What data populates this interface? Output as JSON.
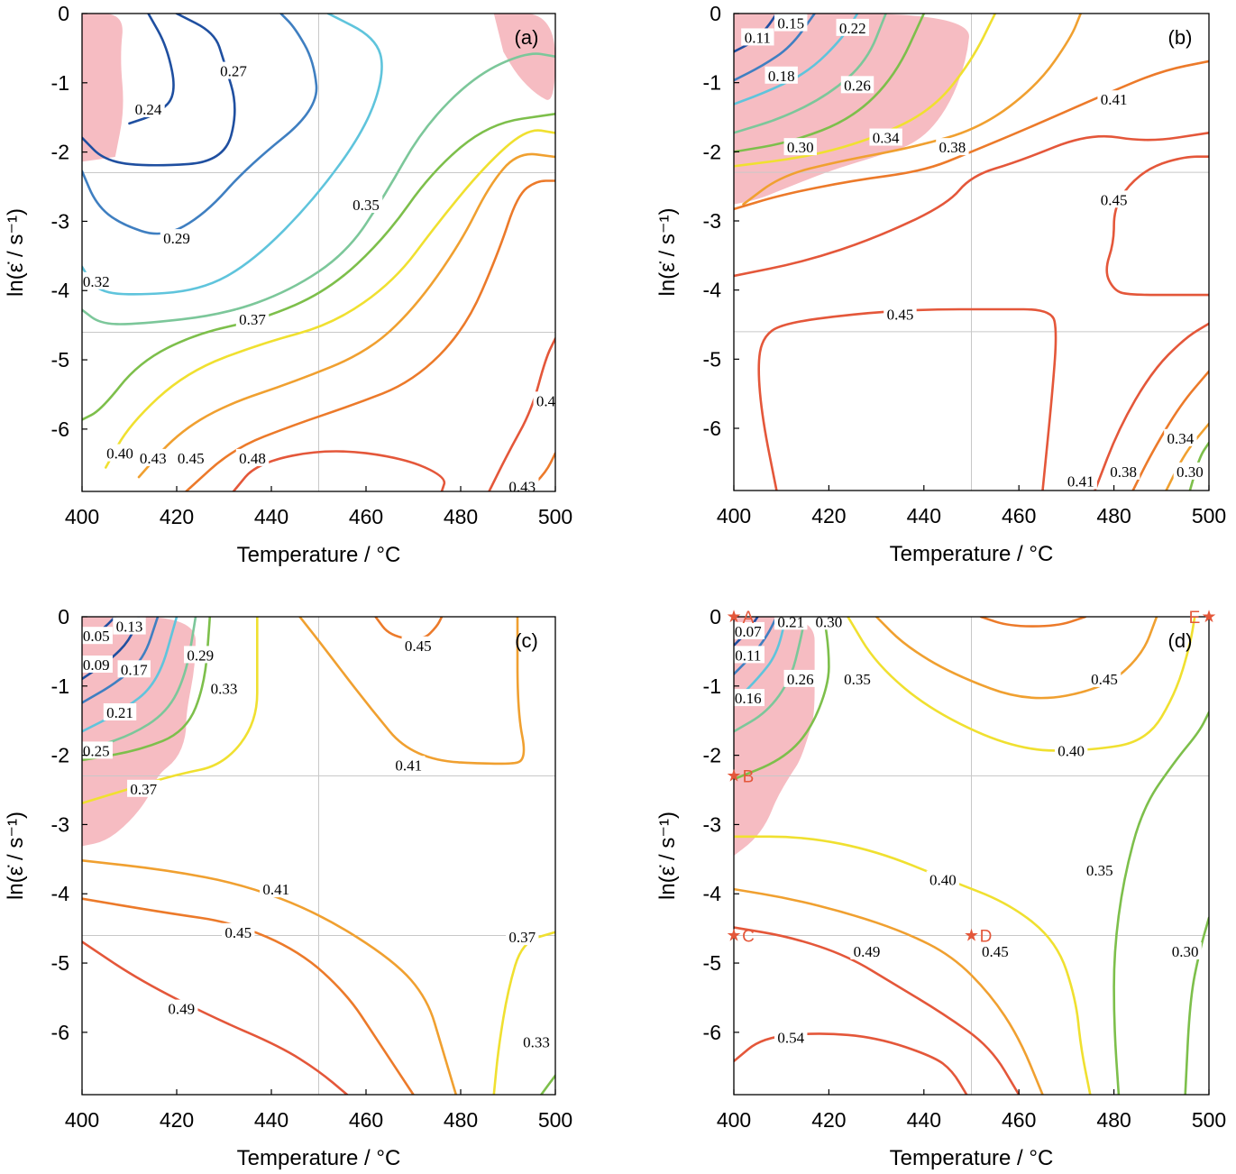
{
  "chart_data": [
    {
      "type": "contour",
      "panel_label": "(a)",
      "xlabel": "Temperature / °C",
      "ylabel": "ln(ε̇ / s⁻¹)",
      "xlim": [
        400,
        500
      ],
      "ylim": [
        -6.9,
        0
      ],
      "xticks": [
        400,
        420,
        440,
        460,
        480,
        500
      ],
      "yticks": [
        0,
        -1,
        -2,
        -3,
        -4,
        -5,
        -6
      ],
      "contour_labels": [
        "0.24",
        "0.27",
        "0.29",
        "0.32",
        "0.35",
        "0.37",
        "0.40",
        "0.43",
        "0.45",
        "0.48",
        "0.4",
        "0.43"
      ]
    },
    {
      "type": "contour",
      "panel_label": "(b)",
      "xlabel": "Temperature / °C",
      "ylabel": "ln(ε̇ / s⁻¹)",
      "xlim": [
        400,
        500
      ],
      "ylim": [
        -6.9,
        0
      ],
      "xticks": [
        400,
        420,
        440,
        460,
        480,
        500
      ],
      "yticks": [
        0,
        -1,
        -2,
        -3,
        -4,
        -5,
        -6
      ],
      "contour_labels": [
        "0.11",
        "0.15",
        "0.22",
        "0.18",
        "0.26",
        "0.30",
        "0.34",
        "0.38",
        "0.41",
        "0.45",
        "0.45",
        "0.41",
        "0.38",
        "0.34",
        "0.30"
      ]
    },
    {
      "type": "contour",
      "panel_label": "(c)",
      "xlabel": "Temperature / °C",
      "ylabel": "ln(ε̇ / s⁻¹)",
      "xlim": [
        400,
        500
      ],
      "ylim": [
        -6.9,
        0
      ],
      "xticks": [
        400,
        420,
        440,
        460,
        480,
        500
      ],
      "yticks": [
        0,
        -1,
        -2,
        -3,
        -4,
        -5,
        -6
      ],
      "contour_labels": [
        "0.05",
        "0.13",
        "0.09",
        "0.17",
        "0.29",
        "0.33",
        "0.21",
        "0.25",
        "0.37",
        "0.45",
        "0.41",
        "0.41",
        "0.45",
        "0.49",
        "0.37",
        "0.33"
      ]
    },
    {
      "type": "contour",
      "panel_label": "(d)",
      "xlabel": "Temperature / °C",
      "ylabel": "ln(ε̇ / s⁻¹)",
      "xlim": [
        400,
        500
      ],
      "ylim": [
        -6.9,
        0
      ],
      "xticks": [
        400,
        420,
        440,
        460,
        480,
        500
      ],
      "yticks": [
        0,
        -1,
        -2,
        -3,
        -4,
        -5,
        -6
      ],
      "contour_labels": [
        "0.07",
        "0.21",
        "0.30",
        "0.11",
        "0.26",
        "0.35",
        "0.16",
        "0.45",
        "0.40",
        "0.35",
        "0.40",
        "0.45",
        "0.49",
        "0.30",
        "0.54"
      ],
      "points": [
        {
          "label": "A",
          "x": 400,
          "y": 0
        },
        {
          "label": "B",
          "x": 400,
          "y": -2.3
        },
        {
          "label": "C",
          "x": 400,
          "y": -4.6
        },
        {
          "label": "D",
          "x": 450,
          "y": -4.6
        },
        {
          "label": "E",
          "x": 500,
          "y": 0
        }
      ]
    }
  ],
  "colors": {
    "instability": "#f6bcc2",
    "dark_blue": "#1f4fa0",
    "blue": "#3f7fc1",
    "light_blue": "#5fc4dc",
    "light_green": "#7cc79a",
    "green": "#7dbf4b",
    "yellow": "#f0e030",
    "orange": "#f0a030",
    "dark_orange": "#ec7a2a",
    "red_orange": "#e4573a",
    "marker": "#e4573a"
  }
}
